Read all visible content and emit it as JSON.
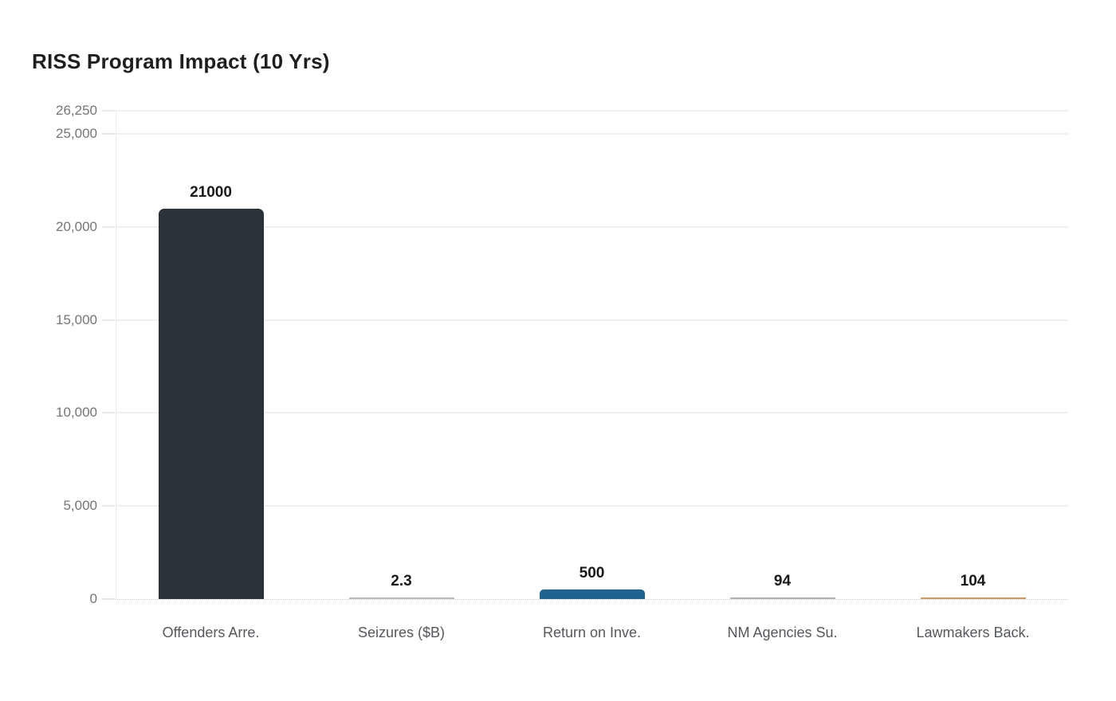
{
  "page": {
    "background": "#ffffff"
  },
  "header": {
    "title": "RISS Program Impact (10 Yrs)"
  },
  "chart_data": {
    "type": "bar",
    "title": "RISS Program Impact (10 Yrs)",
    "categories": [
      "Offenders Arre.",
      "Seizures ($B)",
      "Return on Inve.",
      "NM Agencies Su.",
      "Lawmakers Back."
    ],
    "values": [
      21000,
      2.3,
      500,
      94,
      104
    ],
    "value_labels": [
      "21000",
      "2.3",
      "500",
      "94",
      "104"
    ],
    "bar_colors": [
      "#2b3338",
      "#b6babc",
      "#1f6390",
      "#aeb2b4",
      "#cf9a5f"
    ],
    "xlabel": "",
    "ylabel": "",
    "ylim": [
      0,
      26250
    ],
    "yticks": [
      {
        "value": 26250,
        "label": "26,250"
      },
      {
        "value": 25000,
        "label": "25,000"
      },
      {
        "value": 20000,
        "label": "20,000"
      },
      {
        "value": 15000,
        "label": "15,000"
      },
      {
        "value": 10000,
        "label": "10,000"
      },
      {
        "value": 5000,
        "label": "5,000"
      },
      {
        "value": 0,
        "label": "0"
      }
    ],
    "grid": "horizontal",
    "legend": "none",
    "colors": {
      "title_text": "#1f1f1f",
      "tick_text": "#757575",
      "category_text": "#55595d",
      "value_text": "#17191b",
      "gridline": "#f0f0f0"
    }
  }
}
